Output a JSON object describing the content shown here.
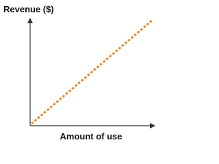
{
  "y_axis_label": "Revenue ($)",
  "x_axis_label": "Amount of use"
}
